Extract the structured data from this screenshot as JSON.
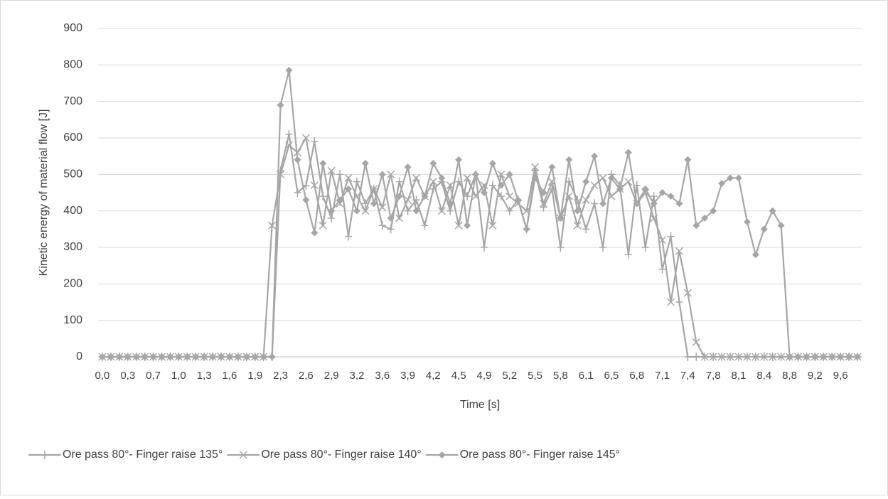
{
  "chart_data": {
    "type": "line",
    "y_label": "Kinetic energy of material flow [J]",
    "x_label": "Time [s]",
    "categories": [
      "0,0",
      null,
      null,
      "0,3",
      null,
      null,
      "0,7",
      null,
      null,
      "1,0",
      null,
      null,
      "1,3",
      null,
      null,
      "1,6",
      null,
      null,
      "1,9",
      null,
      null,
      "2,3",
      null,
      null,
      "2,6",
      null,
      null,
      "2,9",
      null,
      null,
      "3,2",
      null,
      null,
      "3,6",
      null,
      null,
      "3,9",
      null,
      null,
      "4,2",
      null,
      null,
      "4,5",
      null,
      null,
      "4,9",
      null,
      null,
      "5,2",
      null,
      null,
      "5,5",
      null,
      null,
      "5,8",
      null,
      null,
      "6,1",
      null,
      null,
      "6,5",
      null,
      null,
      "6,8",
      null,
      null,
      "7,1",
      null,
      null,
      "7,4",
      null,
      null,
      "7,8",
      null,
      null,
      "8,1",
      null,
      null,
      "8,4",
      null,
      null,
      "8,8",
      null,
      null,
      "9,2",
      null,
      null,
      "9,6",
      null,
      null
    ],
    "series": [
      {
        "name": "Ore pass 80°- Finger raise 135°",
        "color": "#a6a6a6",
        "marker": "plus",
        "values": [
          0,
          0,
          0,
          0,
          0,
          0,
          0,
          0,
          0,
          0,
          0,
          0,
          0,
          0,
          0,
          0,
          0,
          0,
          0,
          0,
          0,
          510,
          610,
          450,
          470,
          590,
          440,
          380,
          500,
          330,
          480,
          420,
          460,
          360,
          350,
          480,
          400,
          430,
          360,
          460,
          480,
          400,
          480,
          440,
          500,
          300,
          470,
          440,
          400,
          430,
          350,
          510,
          410,
          460,
          300,
          480,
          430,
          350,
          420,
          300,
          500,
          470,
          280,
          470,
          300,
          440,
          240,
          330,
          150,
          0,
          0,
          0,
          0,
          0,
          0,
          0,
          0,
          0,
          0,
          0,
          0,
          0,
          0,
          0,
          0,
          0,
          0,
          0,
          0,
          0
        ]
      },
      {
        "name": "Ore pass 80°- Finger raise 140°",
        "color": "#a6a6a6",
        "marker": "cross",
        "values": [
          0,
          0,
          0,
          0,
          0,
          0,
          0,
          0,
          0,
          0,
          0,
          0,
          0,
          0,
          0,
          0,
          0,
          0,
          0,
          0,
          360,
          500,
          580,
          560,
          600,
          470,
          360,
          510,
          420,
          490,
          440,
          400,
          460,
          410,
          500,
          380,
          430,
          490,
          440,
          480,
          400,
          470,
          360,
          490,
          440,
          470,
          360,
          500,
          440,
          420,
          400,
          520,
          420,
          480,
          380,
          440,
          360,
          430,
          470,
          490,
          440,
          460,
          480,
          420,
          450,
          380,
          320,
          150,
          290,
          175,
          40,
          0,
          0,
          0,
          0,
          0,
          0,
          0,
          0,
          0,
          0,
          0,
          0,
          0,
          0,
          0,
          0,
          0,
          0,
          0
        ]
      },
      {
        "name": "Ore pass 80°- Finger raise 145°",
        "color": "#a6a6a6",
        "marker": "diamond",
        "values": [
          0,
          0,
          0,
          0,
          0,
          0,
          0,
          0,
          0,
          0,
          0,
          0,
          0,
          0,
          0,
          0,
          0,
          0,
          0,
          0,
          0,
          690,
          785,
          540,
          430,
          340,
          530,
          400,
          430,
          460,
          400,
          530,
          420,
          500,
          380,
          440,
          520,
          400,
          440,
          530,
          490,
          420,
          540,
          360,
          500,
          450,
          530,
          470,
          500,
          430,
          350,
          490,
          450,
          520,
          380,
          540,
          400,
          480,
          550,
          420,
          490,
          460,
          560,
          420,
          460,
          420,
          450,
          440,
          420,
          540,
          360,
          380,
          400,
          475,
          490,
          490,
          370,
          280,
          350,
          400,
          360,
          0,
          0,
          0,
          0,
          0,
          0,
          0,
          0,
          0
        ]
      }
    ],
    "ylim": [
      0,
      900
    ],
    "yticks": [
      0,
      100,
      200,
      300,
      400,
      500,
      600,
      700,
      800,
      900
    ],
    "grid": true,
    "legend": "bottom"
  }
}
